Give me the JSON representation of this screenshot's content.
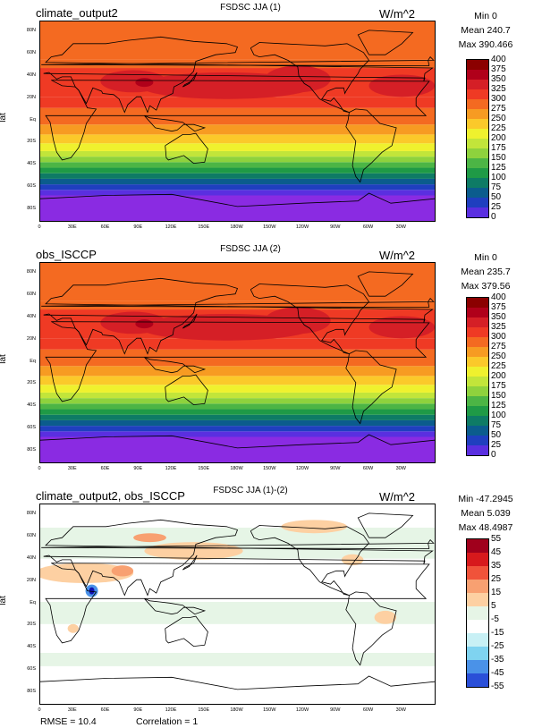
{
  "panels": [
    {
      "id": "p1",
      "left_title": "climate_output2",
      "center_title": "FSDSC JJA (1)",
      "units": "W/m^2",
      "stats": [
        "Min 0",
        "Mean 240.7",
        "Max 390.466"
      ],
      "ylabel": "lat",
      "colorbar_labels": [
        "400",
        "375",
        "350",
        "325",
        "300",
        "275",
        "250",
        "225",
        "200",
        "175",
        "150",
        "125",
        "100",
        "75",
        "50",
        "25",
        "0"
      ],
      "colorbar_colors": [
        "#8b0000",
        "#b0001a",
        "#d51f26",
        "#ef3a24",
        "#f46a21",
        "#f79b22",
        "#fbc92a",
        "#eff12e",
        "#c2e53a",
        "#8ed23d",
        "#4cb545",
        "#1f9a46",
        "#0e7b65",
        "#0b5c8d",
        "#1f3fbf",
        "#5a2fe0",
        "#8a2be2"
      ],
      "map_style": "abs"
    },
    {
      "id": "p2",
      "left_title": "obs_ISCCP",
      "center_title": "FSDSC JJA (2)",
      "units": "W/m^2",
      "stats": [
        "Min 0",
        "Mean 235.7",
        "Max 379.56"
      ],
      "ylabel": "lat",
      "colorbar_labels": [
        "400",
        "375",
        "350",
        "325",
        "300",
        "275",
        "250",
        "225",
        "200",
        "175",
        "150",
        "125",
        "100",
        "75",
        "50",
        "25",
        "0"
      ],
      "colorbar_colors": [
        "#8b0000",
        "#b0001a",
        "#d51f26",
        "#ef3a24",
        "#f46a21",
        "#f79b22",
        "#fbc92a",
        "#eff12e",
        "#c2e53a",
        "#8ed23d",
        "#4cb545",
        "#1f9a46",
        "#0e7b65",
        "#0b5c8d",
        "#1f3fbf",
        "#5a2fe0",
        "#8a2be2"
      ],
      "map_style": "abs"
    },
    {
      "id": "p3",
      "left_title": "climate_output2, obs_ISCCP",
      "center_title": "FSDSC JJA (1)-(2)",
      "units": "W/m^2",
      "stats": [
        "Min -47.2945",
        "Mean 5.039",
        "Max 48.4987"
      ],
      "ylabel": "lat",
      "colorbar_labels": [
        "55",
        "45",
        "35",
        "25",
        "15",
        "5",
        "-5",
        "-15",
        "-25",
        "-35",
        "-45",
        "-55"
      ],
      "colorbar_colors": [
        "#a0001c",
        "#d7191c",
        "#f0533a",
        "#f8a071",
        "#fdd0a2",
        "#e6f5e6",
        "#ffffff",
        "#c8f0f5",
        "#7fd3f0",
        "#4a92e8",
        "#2a4fd8",
        "#1010b0"
      ],
      "map_style": "diff"
    }
  ],
  "axes": {
    "lat_ticks": [
      "80N",
      "60N",
      "40N",
      "20N",
      "Eq",
      "20S",
      "40S",
      "60S",
      "80S"
    ],
    "lon_ticks": [
      "0",
      "30E",
      "60E",
      "90E",
      "120E",
      "150E",
      "180W",
      "150W",
      "120W",
      "90W",
      "60W",
      "30W"
    ]
  },
  "footer": {
    "rmse": "RMSE = 10.4",
    "correlation": "Correlation = 1"
  }
}
